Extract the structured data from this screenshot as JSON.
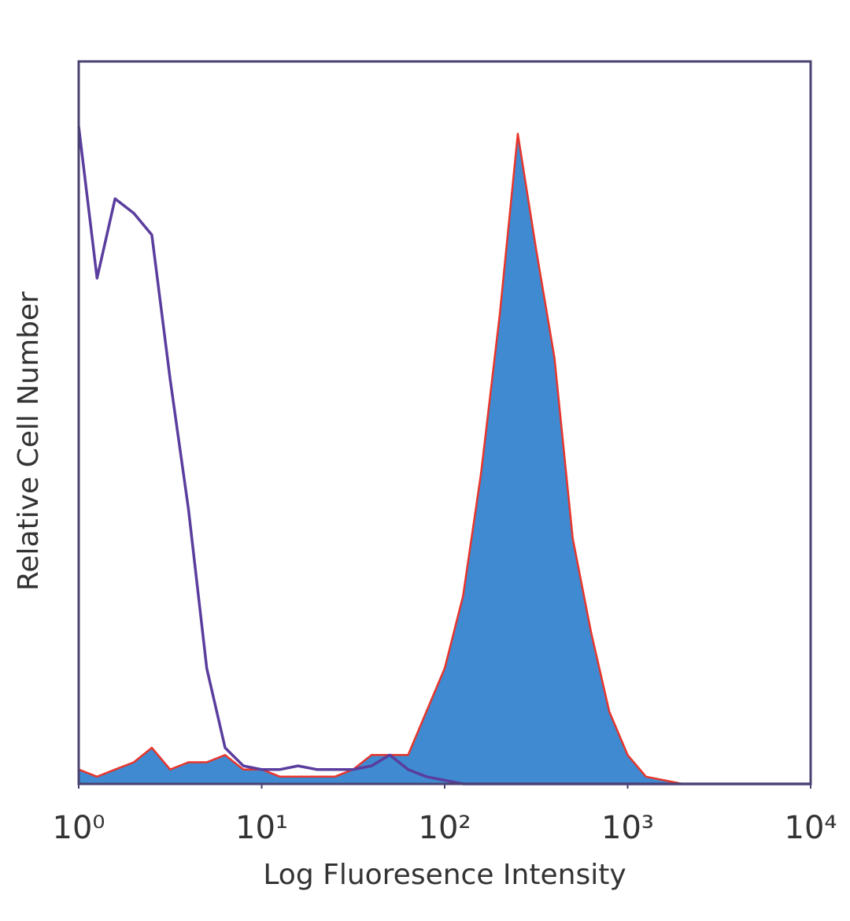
{
  "chart_data": {
    "type": "histogram-overlay",
    "x_label": "Log Fluoresence Intensity",
    "y_label": "Relative Cell Number",
    "xscale": "log",
    "xlim": [
      1,
      10000
    ],
    "xticks": [
      {
        "value": 1,
        "label": "10⁰"
      },
      {
        "value": 10,
        "label": "10¹"
      },
      {
        "value": 100,
        "label": "10²"
      },
      {
        "value": 1000,
        "label": "10³"
      },
      {
        "value": 10000,
        "label": "10⁴"
      }
    ],
    "ylim": [
      0,
      100
    ],
    "x": [
      1,
      1.26,
      1.58,
      2,
      2.51,
      3.16,
      3.98,
      5.01,
      6.31,
      7.94,
      10,
      12.6,
      15.8,
      20,
      25.1,
      31.6,
      39.8,
      50.1,
      63.1,
      79.4,
      100,
      126,
      158,
      200,
      251,
      316,
      398,
      501,
      631,
      794,
      1000,
      1259,
      1585,
      1995,
      2512,
      3162,
      3981,
      5012,
      6310,
      7943,
      10000
    ],
    "series": [
      {
        "color": "#e8352b",
        "fill": "#3f8ad0",
        "values": [
          2,
          1,
          2,
          3,
          5,
          2,
          3,
          3,
          4,
          2,
          2,
          1,
          1,
          1,
          1,
          2,
          4,
          4,
          4,
          10,
          16,
          26,
          43,
          65,
          90,
          74,
          59,
          34,
          21,
          10,
          4,
          1,
          0.5,
          0,
          0,
          0,
          0,
          0,
          0,
          0,
          0
        ]
      },
      {
        "color": "#5a3d9e",
        "values": [
          91,
          70,
          81,
          79,
          76,
          56,
          38,
          16,
          5,
          2.5,
          2,
          2,
          2.5,
          2,
          2,
          2,
          2.5,
          4,
          2,
          1,
          0.5,
          0,
          0,
          0,
          0,
          0,
          0,
          0,
          0,
          0,
          0,
          0,
          0,
          0,
          0,
          0,
          0,
          0,
          0,
          0,
          0
        ]
      }
    ]
  }
}
